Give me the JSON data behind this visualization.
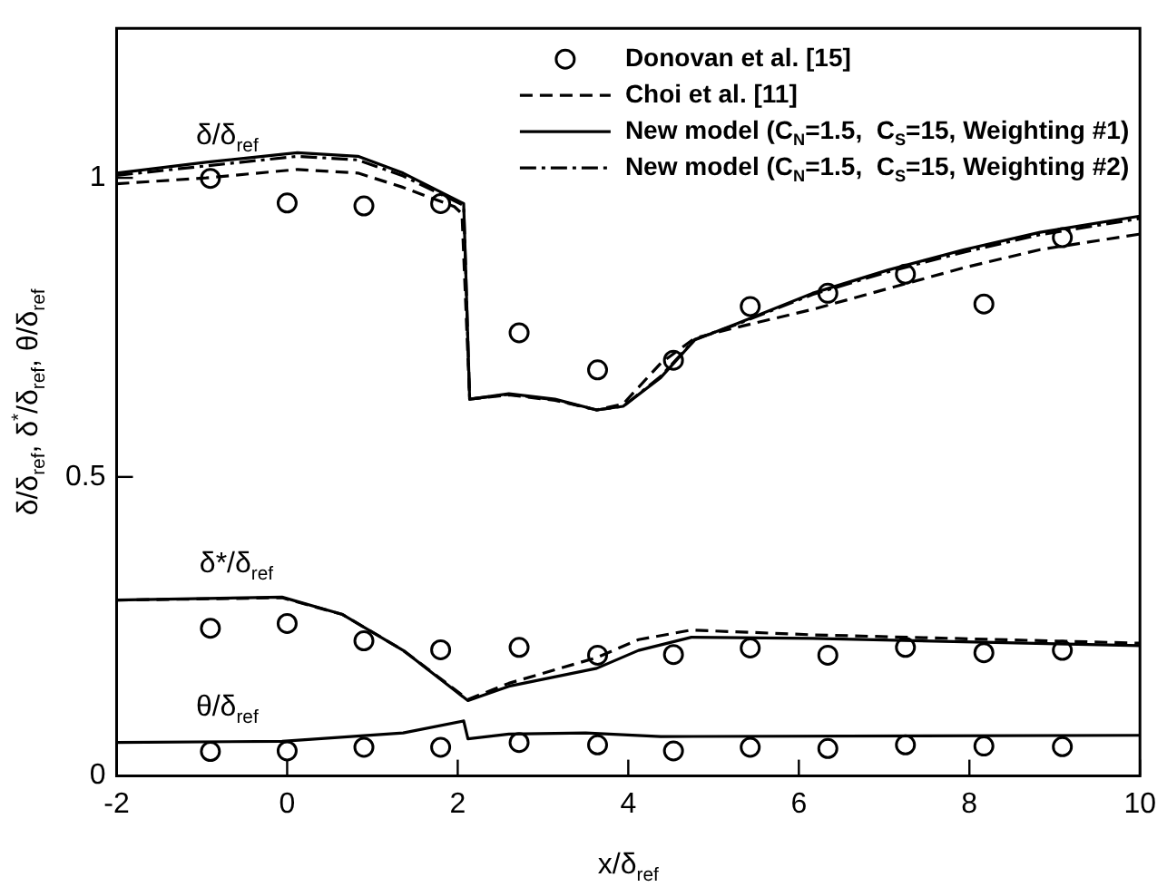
{
  "chart_data": {
    "type": "line",
    "xlabel": "x/δ$_{ref}$",
    "ylabel": "δ/δ$_{ref}$, δ$^{*}$/δ$_{ref}$, θ/δ$_{ref}$",
    "xlim": [
      -2,
      10
    ],
    "xticks": [
      -2,
      0,
      2,
      4,
      6,
      8,
      10
    ],
    "ylim": [
      0,
      1.25
    ],
    "yticks": [
      0,
      0.5,
      1
    ],
    "legend": "top right",
    "annotations": [
      "δ/δ$_{ref}$",
      "δ*/δ$_{ref}$",
      "θ/δ$_{ref}$"
    ],
    "series": [
      {
        "name": "Donovan et al. [15]",
        "type": "scatter",
        "marker": "circle",
        "color": "#000000",
        "x": [
          -0.9,
          0,
          0.9,
          1.8,
          2.72,
          3.64,
          4.53,
          5.43,
          6.34,
          7.25,
          8.17,
          9.09,
          -0.9,
          0,
          0.9,
          1.8,
          2.72,
          3.64,
          4.53,
          5.43,
          6.34,
          7.25,
          8.17,
          9.09,
          -0.9,
          0,
          0.9,
          1.8,
          2.72,
          3.64,
          4.53,
          5.43,
          6.34,
          7.25,
          8.17,
          9.09
        ],
        "values": [
          0.999,
          0.958,
          0.953,
          0.957,
          0.741,
          0.679,
          0.695,
          0.785,
          0.807,
          0.839,
          0.789,
          0.9,
          0.247,
          0.255,
          0.226,
          0.211,
          0.215,
          0.202,
          0.203,
          0.214,
          0.202,
          0.215,
          0.206,
          0.21,
          0.041,
          0.042,
          0.048,
          0.048,
          0.056,
          0.052,
          0.042,
          0.048,
          0.046,
          0.052,
          0.05,
          0.049
        ]
      },
      {
        "name": "Choi et al. [11]",
        "line_style": "dashed",
        "color": "#000000",
        "x": [
          -2,
          -0.95,
          0.12,
          0.83,
          1.36,
          1.96,
          2.05,
          2.14,
          2.6,
          3.14,
          3.63,
          3.94,
          4.38,
          4.78,
          5.27,
          6.16,
          7.05,
          7.94,
          8.83,
          10
        ],
        "values": [
          0.99,
          1.0,
          1.014,
          1.008,
          0.984,
          0.952,
          0.94,
          0.63,
          0.637,
          0.628,
          0.612,
          0.622,
          0.69,
          0.732,
          0.75,
          0.78,
          0.815,
          0.85,
          0.88,
          0.906
        ]
      },
      {
        "line_style": "dashed",
        "color": "#000000",
        "x": [
          -2,
          -0.06,
          0.65,
          1.36,
          2.12,
          2.6,
          3.63,
          4.12,
          4.74,
          6.16,
          10
        ],
        "values": [
          0.294,
          0.298,
          0.27,
          0.21,
          0.128,
          0.155,
          0.198,
          0.228,
          0.244,
          0.236,
          0.222
        ]
      },
      {
        "name": "New model (C$_{N}$=1.5,  C$_{S}$=15, Weighting #1)",
        "line_style": "solid",
        "color": "#000000",
        "x": [
          -2,
          -0.95,
          0.12,
          0.83,
          1.36,
          2.07,
          2.14,
          2.6,
          3.14,
          3.63,
          3.94,
          4.38,
          4.78,
          5.27,
          6.16,
          7.05,
          7.94,
          8.83,
          10
        ],
        "values": [
          1.008,
          1.026,
          1.042,
          1.036,
          1.008,
          0.957,
          0.63,
          0.639,
          0.63,
          0.612,
          0.618,
          0.666,
          0.729,
          0.756,
          0.807,
          0.846,
          0.88,
          0.909,
          0.936
        ]
      },
      {
        "line_style": "solid",
        "color": "#000000",
        "x": [
          -2,
          -0.06,
          0.65,
          1.36,
          2.12,
          2.6,
          3.63,
          4.12,
          4.74,
          6.16,
          10
        ],
        "values": [
          0.294,
          0.299,
          0.27,
          0.21,
          0.126,
          0.15,
          0.18,
          0.21,
          0.232,
          0.23,
          0.218
        ]
      },
      {
        "line_style": "solid",
        "color": "#000000",
        "x": [
          -2,
          -0.06,
          1.36,
          2.07,
          2.12,
          2.6,
          3.5,
          4.38,
          10
        ],
        "values": [
          0.056,
          0.058,
          0.072,
          0.092,
          0.062,
          0.07,
          0.072,
          0.066,
          0.068
        ]
      },
      {
        "name": "New model (C$_{N}$=1.5,  C$_{S}$=15, Weighting #2)",
        "line_style": "dashdot",
        "color": "#000000",
        "x": [
          -2,
          -0.95,
          0.12,
          0.83,
          1.36,
          2.07,
          2.14,
          2.6,
          3.14,
          3.63,
          3.94,
          4.38,
          4.78,
          5.27,
          6.16,
          7.05,
          7.94,
          8.83,
          10
        ],
        "values": [
          1.004,
          1.02,
          1.036,
          1.03,
          1.003,
          0.954,
          0.63,
          0.638,
          0.629,
          0.612,
          0.618,
          0.668,
          0.73,
          0.755,
          0.805,
          0.843,
          0.876,
          0.905,
          0.932
        ]
      }
    ]
  }
}
